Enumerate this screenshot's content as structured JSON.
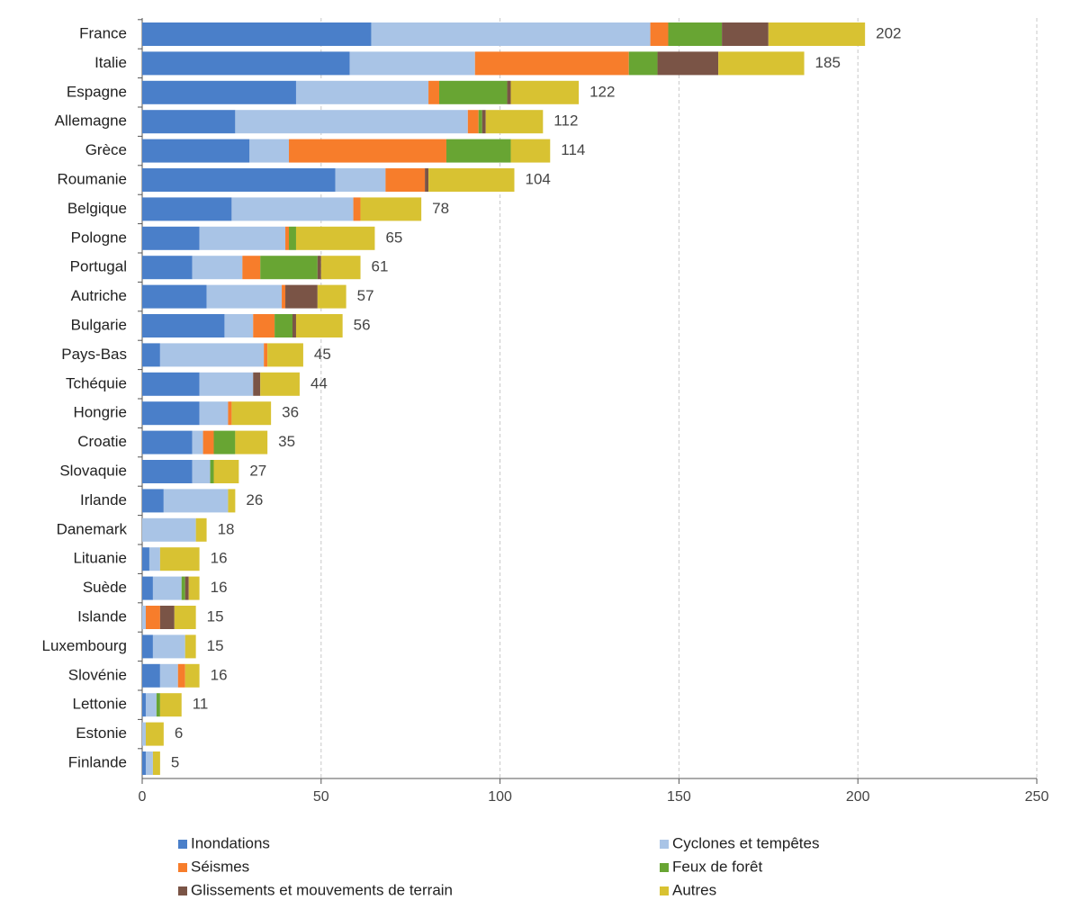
{
  "chart_data": {
    "type": "stacked-barh",
    "categories": [
      "France",
      "Italie",
      "Espagne",
      "Allemagne",
      "Grèce",
      "Roumanie",
      "Belgique",
      "Pologne",
      "Portugal",
      "Autriche",
      "Bulgarie",
      "Pays-Bas",
      "Tchéquie",
      "Hongrie",
      "Croatie",
      "Slovaquie",
      "Irlande",
      "Danemark",
      "Lituanie",
      "Suède",
      "Islande",
      "Luxembourg",
      "Slovénie",
      "Lettonie",
      "Estonie",
      "Finlande"
    ],
    "series": [
      {
        "name": "Inondations",
        "color": "#4a7fc9",
        "values": [
          64,
          58,
          43,
          26,
          30,
          54,
          25,
          16,
          14,
          18,
          23,
          5,
          16,
          16,
          14,
          14,
          6,
          0,
          2,
          3,
          0,
          3,
          5,
          1,
          0,
          1
        ]
      },
      {
        "name": "Cyclones et tempêtes",
        "color": "#a9c4e6",
        "values": [
          78,
          35,
          37,
          65,
          11,
          14,
          34,
          24,
          14,
          21,
          8,
          29,
          15,
          8,
          3,
          5,
          18,
          15,
          3,
          8,
          1,
          9,
          5,
          3,
          1,
          2
        ]
      },
      {
        "name": "Séismes",
        "color": "#f77d2b",
        "values": [
          5,
          43,
          3,
          3,
          44,
          11,
          2,
          1,
          5,
          1,
          6,
          1,
          0,
          1,
          3,
          0,
          0,
          0,
          0,
          0,
          4,
          0,
          2,
          0,
          0,
          0
        ]
      },
      {
        "name": "Feux de forêt",
        "color": "#68a533",
        "values": [
          15,
          8,
          19,
          1,
          18,
          0,
          0,
          2,
          16,
          0,
          5,
          0,
          0,
          0,
          6,
          1,
          0,
          0,
          0,
          1,
          0,
          0,
          0,
          1,
          0,
          0
        ]
      },
      {
        "name": "Glissements et mouvements de terrain",
        "color": "#7a5446",
        "values": [
          13,
          17,
          1,
          1,
          0,
          1,
          0,
          0,
          1,
          9,
          1,
          0,
          2,
          0,
          0,
          0,
          0,
          0,
          0,
          1,
          4,
          0,
          0,
          0,
          0,
          0
        ]
      },
      {
        "name": "Autres",
        "color": "#d8c232",
        "values": [
          27,
          24,
          19,
          16,
          11,
          24,
          17,
          22,
          11,
          8,
          13,
          10,
          11,
          11,
          9,
          7,
          2,
          3,
          11,
          3,
          6,
          3,
          4,
          6,
          5,
          2
        ]
      }
    ],
    "totals": [
      202,
      185,
      122,
      112,
      114,
      104,
      78,
      65,
      61,
      57,
      56,
      45,
      44,
      36,
      35,
      27,
      26,
      18,
      16,
      16,
      15,
      15,
      16,
      11,
      6,
      5
    ],
    "xlim": [
      0,
      250
    ],
    "xticks": [
      0,
      50,
      100,
      150,
      200,
      250
    ],
    "grid": true
  }
}
